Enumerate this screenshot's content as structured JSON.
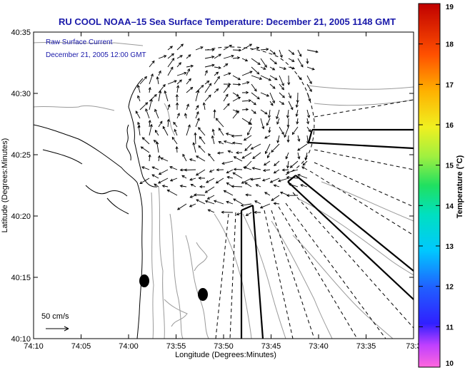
{
  "title": "RU COOL  NOAA–15  Sea Surface Temperature:  December 21, 2005 1148 GMT",
  "inset": {
    "line1": "Raw Surface Current",
    "line2": "December 21, 2005 12:00 GMT"
  },
  "scale_label": "50 cm/s",
  "axes": {
    "xlabel": "Longitude (Degrees:Minutes)",
    "ylabel": "Latitude (Degrees:Minutes)",
    "xticks": [
      "74:10",
      "74:05",
      "74:00",
      "73:55",
      "73:50",
      "73:45",
      "73:40",
      "73:35",
      "73:3"
    ],
    "yticks": [
      "40:35",
      "40:30",
      "40:25",
      "40:20",
      "40:15",
      "40:10"
    ]
  },
  "colorbar": {
    "label": "Temperature (°C)",
    "ticks": [
      "19",
      "18",
      "17",
      "16",
      "15",
      "14",
      "13",
      "12",
      "11",
      "10"
    ],
    "min": 10,
    "max": 19
  },
  "colors": {
    "title": "#1a1aaa",
    "coast": "#000000",
    "bathymetry": "#9a9a9a"
  }
}
